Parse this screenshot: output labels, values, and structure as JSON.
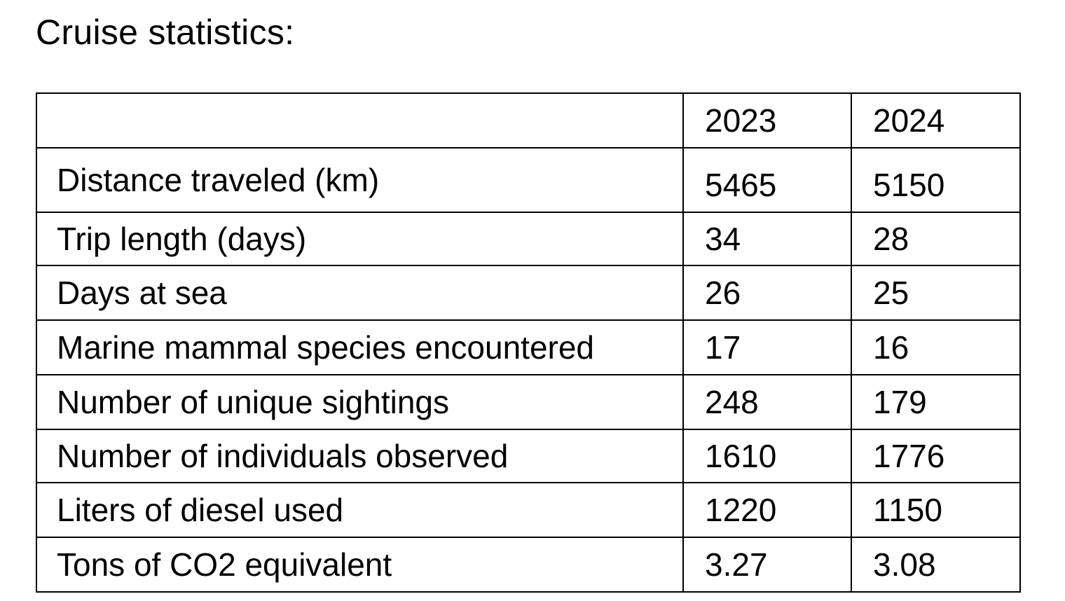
{
  "document": {
    "title": "Cruise statistics:"
  },
  "table": {
    "header": [
      "",
      "2023",
      "2024"
    ],
    "rows": [
      {
        "label": "Distance traveled (km)",
        "y2023": "5465",
        "y2024": "5150"
      },
      {
        "label": "Trip length (days)",
        "y2023": "34",
        "y2024": "28"
      },
      {
        "label": "Days at sea",
        "y2023": "26",
        "y2024": "25"
      },
      {
        "label": "Marine mammal species encountered",
        "y2023": "17",
        "y2024": "16"
      },
      {
        "label": "Number of unique sightings",
        "y2023": "248",
        "y2024": "179"
      },
      {
        "label": "Number of individuals observed",
        "y2023": "1610",
        "y2024": "1776"
      },
      {
        "label": "Liters of diesel used",
        "y2023": "1220",
        "y2024": "1150"
      },
      {
        "label": "Tons of CO2 equivalent",
        "y2023": "3.27",
        "y2024": "3.08"
      }
    ]
  }
}
